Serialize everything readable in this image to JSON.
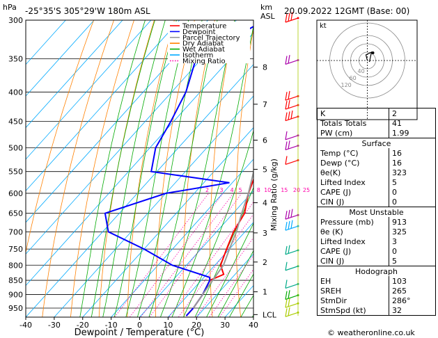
{
  "header": {
    "location": "-25°35'S  305°29'W  180m  ASL",
    "datetime": "20.09.2022  12GMT  (Base: 00)",
    "hpa_unit": "hPa",
    "km_unit": "km",
    "asl_unit": "ASL"
  },
  "chart_data": {
    "type": "line",
    "xlabel": "Dewpoint / Temperature (°C)",
    "ylabel_right": "Mixing Ratio (g/kg)",
    "x_ticks": [
      -40,
      -30,
      -20,
      -10,
      0,
      10,
      20,
      30,
      40
    ],
    "pressure_levels": [
      300,
      350,
      400,
      450,
      500,
      550,
      600,
      650,
      700,
      750,
      800,
      850,
      900,
      950
    ],
    "km_labels": [
      {
        "label": "8",
        "p": 362
      },
      {
        "label": "7",
        "p": 420
      },
      {
        "label": "6",
        "p": 485
      },
      {
        "label": "5",
        "p": 545
      },
      {
        "label": "4",
        "p": 623
      },
      {
        "label": "3",
        "p": 703
      },
      {
        "label": "2",
        "p": 790
      },
      {
        "label": "1",
        "p": 890
      },
      {
        "label": "LCL",
        "p": 975
      }
    ],
    "mixing_ratio_labels": [
      "2",
      "3",
      "4",
      "5",
      "8",
      "10",
      "15",
      "20",
      "25"
    ],
    "mixing_ratio_values": [
      2,
      3,
      4,
      5,
      8,
      10,
      15,
      20,
      25
    ],
    "legend": [
      "Temperature",
      "Dewpoint",
      "Parcel Trajectory",
      "Dry Adiabat",
      "Wet Adiabat",
      "Isotherm",
      "Mixing Ratio"
    ],
    "legend_colors": [
      "#ff0000",
      "#0000ff",
      "#999999",
      "#ff8000",
      "#00aa00",
      "#00aaff",
      "#ff00aa"
    ],
    "series": [
      {
        "name": "Temperature",
        "color": "#ff0000",
        "points": [
          [
            -32,
            300
          ],
          [
            -26,
            350
          ],
          [
            -19,
            400
          ],
          [
            -13,
            450
          ],
          [
            -9,
            500
          ],
          [
            -5,
            550
          ],
          [
            -1,
            600
          ],
          [
            4,
            650
          ],
          [
            6,
            700
          ],
          [
            9,
            750
          ],
          [
            12,
            800
          ],
          [
            16,
            830
          ],
          [
            13,
            850
          ],
          [
            15,
            900
          ],
          [
            16,
            950
          ],
          [
            16,
            980
          ]
        ]
      },
      {
        "name": "Dewpoint",
        "color": "#0000ff",
        "points": [
          [
            -50,
            300
          ],
          [
            -62,
            350
          ],
          [
            -55,
            400
          ],
          [
            -51,
            450
          ],
          [
            -48,
            500
          ],
          [
            -42,
            550
          ],
          [
            -11,
            575
          ],
          [
            -30,
            600
          ],
          [
            -45,
            650
          ],
          [
            -38,
            700
          ],
          [
            -20,
            750
          ],
          [
            -5,
            800
          ],
          [
            12,
            840
          ],
          [
            13,
            850
          ],
          [
            15,
            900
          ],
          [
            16,
            950
          ],
          [
            16,
            980
          ]
        ]
      },
      {
        "name": "Parcel Trajectory",
        "color": "#999999",
        "points": [
          [
            -40,
            300
          ],
          [
            -32,
            350
          ],
          [
            -25,
            400
          ],
          [
            -18,
            450
          ],
          [
            -11,
            500
          ],
          [
            -6,
            550
          ],
          [
            -1,
            600
          ],
          [
            3,
            650
          ],
          [
            7,
            700
          ],
          [
            10,
            750
          ],
          [
            13,
            800
          ],
          [
            14,
            850
          ],
          [
            15,
            900
          ],
          [
            16,
            950
          ]
        ]
      }
    ]
  },
  "hodograph": {
    "label": "kt",
    "rings": [
      "40",
      "60",
      "120"
    ]
  },
  "indices": {
    "top": [
      {
        "label": "K",
        "value": "2"
      },
      {
        "label": "Totals Totals",
        "value": "41"
      },
      {
        "label": "PW (cm)",
        "value": "1.99"
      }
    ],
    "surface": {
      "title": "Surface",
      "rows": [
        {
          "label": "Temp (°C)",
          "value": "16"
        },
        {
          "label": "Dewp (°C)",
          "value": "16"
        },
        {
          "label": "θe(K)",
          "value": "323"
        },
        {
          "label": "Lifted Index",
          "value": "5"
        },
        {
          "label": "CAPE (J)",
          "value": "0"
        },
        {
          "label": "CIN (J)",
          "value": "0"
        }
      ]
    },
    "unstable": {
      "title": "Most Unstable",
      "rows": [
        {
          "label": "Pressure (mb)",
          "value": "913"
        },
        {
          "label": "θe (K)",
          "value": "325"
        },
        {
          "label": "Lifted Index",
          "value": "3"
        },
        {
          "label": "CAPE (J)",
          "value": "0"
        },
        {
          "label": "CIN (J)",
          "value": "5"
        }
      ]
    },
    "hodo": {
      "title": "Hodograph",
      "rows": [
        {
          "label": "EH",
          "value": "103"
        },
        {
          "label": "SREH",
          "value": "265"
        },
        {
          "label": "StmDir",
          "value": "286°"
        },
        {
          "label": "StmSpd (kt)",
          "value": "32"
        }
      ]
    }
  },
  "footer": "© weatheronline.co.uk"
}
